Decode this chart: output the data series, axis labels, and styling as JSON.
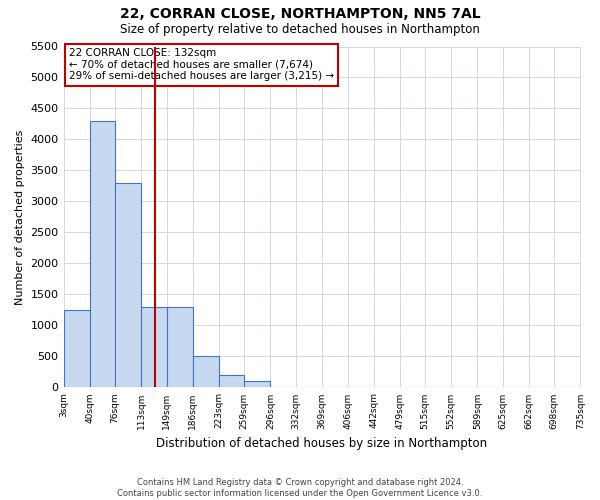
{
  "title": "22, CORRAN CLOSE, NORTHAMPTON, NN5 7AL",
  "subtitle": "Size of property relative to detached houses in Northampton",
  "xlabel": "Distribution of detached houses by size in Northampton",
  "ylabel": "Number of detached properties",
  "footer_line1": "Contains HM Land Registry data © Crown copyright and database right 2024.",
  "footer_line2": "Contains public sector information licensed under the Open Government Licence v3.0.",
  "annotation_line1": "22 CORRAN CLOSE: 132sqm",
  "annotation_line2": "← 70% of detached houses are smaller (7,674)",
  "annotation_line3": "29% of semi-detached houses are larger (3,215) →",
  "red_line_x": 132,
  "bar_edges": [
    3,
    40,
    76,
    113,
    149,
    186,
    223,
    259,
    296,
    332,
    369,
    406,
    442,
    479,
    515,
    552,
    589,
    625,
    662,
    698,
    735
  ],
  "bar_heights": [
    1250,
    4300,
    3300,
    1300,
    1300,
    500,
    200,
    100,
    0,
    0,
    0,
    0,
    0,
    0,
    0,
    0,
    0,
    0,
    0,
    0
  ],
  "bar_color": "#c6d9f0",
  "bar_edge_color": "#4472c4",
  "red_line_color": "#c00000",
  "grid_color": "#d0d8e8",
  "ylim": [
    0,
    5500
  ],
  "yticks": [
    0,
    500,
    1000,
    1500,
    2000,
    2500,
    3000,
    3500,
    4000,
    4500,
    5000,
    5500
  ],
  "annotation_box_color": "#c00000",
  "background_color": "#ffffff",
  "fig_width": 6.0,
  "fig_height": 5.0,
  "dpi": 100
}
